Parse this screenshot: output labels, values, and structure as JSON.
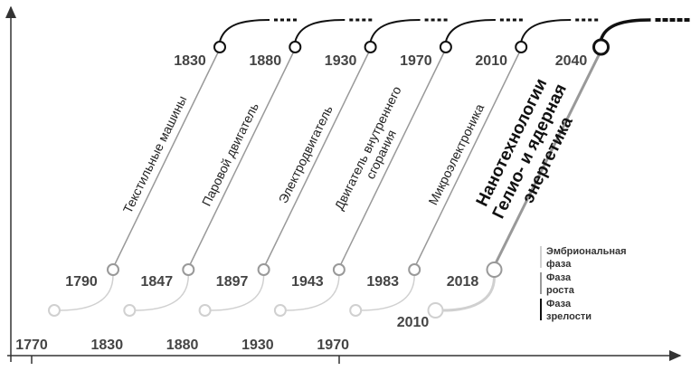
{
  "waves": [
    {
      "start_year": "1770",
      "growth_year": "1790",
      "peak_year": "1830",
      "labels": [
        "Текстильные машины"
      ]
    },
    {
      "start_year": "1830",
      "growth_year": "1847",
      "peak_year": "1880",
      "labels": [
        "Паровой двигатель"
      ]
    },
    {
      "start_year": "1880",
      "growth_year": "1897",
      "peak_year": "1930",
      "labels": [
        "Электродвигатель"
      ]
    },
    {
      "start_year": "1930",
      "growth_year": "1943",
      "peak_year": "1970",
      "labels": [
        "Двигатель внутреннего",
        "сгорания"
      ]
    },
    {
      "start_year": "1970",
      "growth_year": "1983",
      "peak_year": "2010",
      "labels": [
        "Микроэлектроника"
      ]
    },
    {
      "start_year": "2010",
      "growth_year": "2018",
      "peak_year": "2040",
      "labels": [
        "Нанотехнологии",
        "Гелио- и ядерная",
        "энергетика"
      ]
    }
  ],
  "legend": [
    {
      "lines": [
        "Эмбриональная",
        "фаза"
      ]
    },
    {
      "lines": [
        "Фаза",
        "роста"
      ]
    },
    {
      "lines": [
        "Фаза",
        "зрелости"
      ]
    }
  ]
}
